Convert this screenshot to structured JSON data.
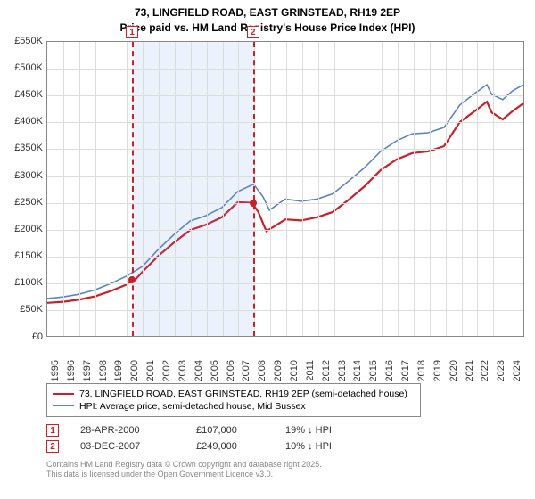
{
  "title_line1": "73, LINGFIELD ROAD, EAST GRINSTEAD, RH19 2EP",
  "title_line2": "Price paid vs. HM Land Registry's House Price Index (HPI)",
  "chart": {
    "type": "line",
    "xlim": [
      1995,
      2025
    ],
    "ylim": [
      0,
      550
    ],
    "y_ticks": [
      0,
      50,
      100,
      150,
      200,
      250,
      300,
      350,
      400,
      450,
      500,
      550
    ],
    "y_tick_labels": [
      "£0",
      "£50K",
      "£100K",
      "£150K",
      "£200K",
      "£250K",
      "£300K",
      "£350K",
      "£400K",
      "£450K",
      "£500K",
      "£550K"
    ],
    "x_ticks": [
      1995,
      1996,
      1997,
      1998,
      1999,
      2000,
      2001,
      2002,
      2003,
      2004,
      2005,
      2006,
      2007,
      2008,
      2009,
      2010,
      2011,
      2012,
      2013,
      2014,
      2015,
      2016,
      2017,
      2018,
      2019,
      2020,
      2021,
      2022,
      2023,
      2024
    ],
    "grid_color": "#dddddd",
    "border_color": "#888888",
    "background_color": "#ffffff",
    "shade_color": "rgba(100,150,220,0.12)",
    "shade_ranges": [
      [
        2000.35,
        2007.95
      ]
    ],
    "series": [
      {
        "name": "price_paid",
        "color": "#cb2027",
        "width": 2.2,
        "points": [
          [
            1995,
            62
          ],
          [
            1996,
            64
          ],
          [
            1997,
            68
          ],
          [
            1998,
            74
          ],
          [
            1999,
            84
          ],
          [
            2000,
            96
          ],
          [
            2000.6,
            107
          ],
          [
            2001,
            120
          ],
          [
            2002,
            150
          ],
          [
            2003,
            175
          ],
          [
            2004,
            198
          ],
          [
            2005,
            208
          ],
          [
            2006,
            222
          ],
          [
            2007,
            250
          ],
          [
            2007.9,
            249
          ],
          [
            2008.3,
            232
          ],
          [
            2008.8,
            196
          ],
          [
            2009.3,
            205
          ],
          [
            2010,
            218
          ],
          [
            2011,
            216
          ],
          [
            2012,
            222
          ],
          [
            2013,
            232
          ],
          [
            2014,
            255
          ],
          [
            2015,
            280
          ],
          [
            2016,
            310
          ],
          [
            2017,
            330
          ],
          [
            2018,
            342
          ],
          [
            2019,
            345
          ],
          [
            2020,
            355
          ],
          [
            2021,
            400
          ],
          [
            2022,
            422
          ],
          [
            2022.7,
            438
          ],
          [
            2023,
            418
          ],
          [
            2023.7,
            405
          ],
          [
            2024.3,
            420
          ],
          [
            2025,
            435
          ]
        ]
      },
      {
        "name": "hpi",
        "color": "#5b84c4",
        "width": 1.6,
        "points": [
          [
            1995,
            70
          ],
          [
            1996,
            73
          ],
          [
            1997,
            78
          ],
          [
            1998,
            86
          ],
          [
            1999,
            98
          ],
          [
            2000,
            112
          ],
          [
            2001,
            130
          ],
          [
            2002,
            162
          ],
          [
            2003,
            190
          ],
          [
            2004,
            215
          ],
          [
            2005,
            225
          ],
          [
            2006,
            240
          ],
          [
            2007,
            270
          ],
          [
            2008,
            284
          ],
          [
            2008.6,
            260
          ],
          [
            2009,
            235
          ],
          [
            2009.6,
            248
          ],
          [
            2010,
            256
          ],
          [
            2011,
            252
          ],
          [
            2012,
            256
          ],
          [
            2013,
            266
          ],
          [
            2014,
            290
          ],
          [
            2015,
            315
          ],
          [
            2016,
            345
          ],
          [
            2017,
            365
          ],
          [
            2018,
            378
          ],
          [
            2019,
            380
          ],
          [
            2020,
            390
          ],
          [
            2021,
            432
          ],
          [
            2022,
            455
          ],
          [
            2022.7,
            470
          ],
          [
            2023,
            452
          ],
          [
            2023.7,
            442
          ],
          [
            2024.3,
            458
          ],
          [
            2025,
            470
          ]
        ]
      }
    ],
    "sale_markers": [
      {
        "n": "1",
        "x": 2000.32,
        "y": 107
      },
      {
        "n": "2",
        "x": 2007.92,
        "y": 249
      }
    ]
  },
  "legend": {
    "items": [
      {
        "color": "#cb2027",
        "width": 2.2,
        "label": "73, LINGFIELD ROAD, EAST GRINSTEAD, RH19 2EP (semi-detached house)"
      },
      {
        "color": "#5b84c4",
        "width": 1.6,
        "label": "HPI: Average price, semi-detached house, Mid Sussex"
      }
    ]
  },
  "sales": [
    {
      "n": "1",
      "date": "28-APR-2000",
      "price": "£107,000",
      "delta": "19% ↓ HPI"
    },
    {
      "n": "2",
      "date": "03-DEC-2007",
      "price": "£249,000",
      "delta": "10% ↓ HPI"
    }
  ],
  "footer_line1": "Contains HM Land Registry data © Crown copyright and database right 2025.",
  "footer_line2": "This data is licensed under the Open Government Licence v3.0."
}
